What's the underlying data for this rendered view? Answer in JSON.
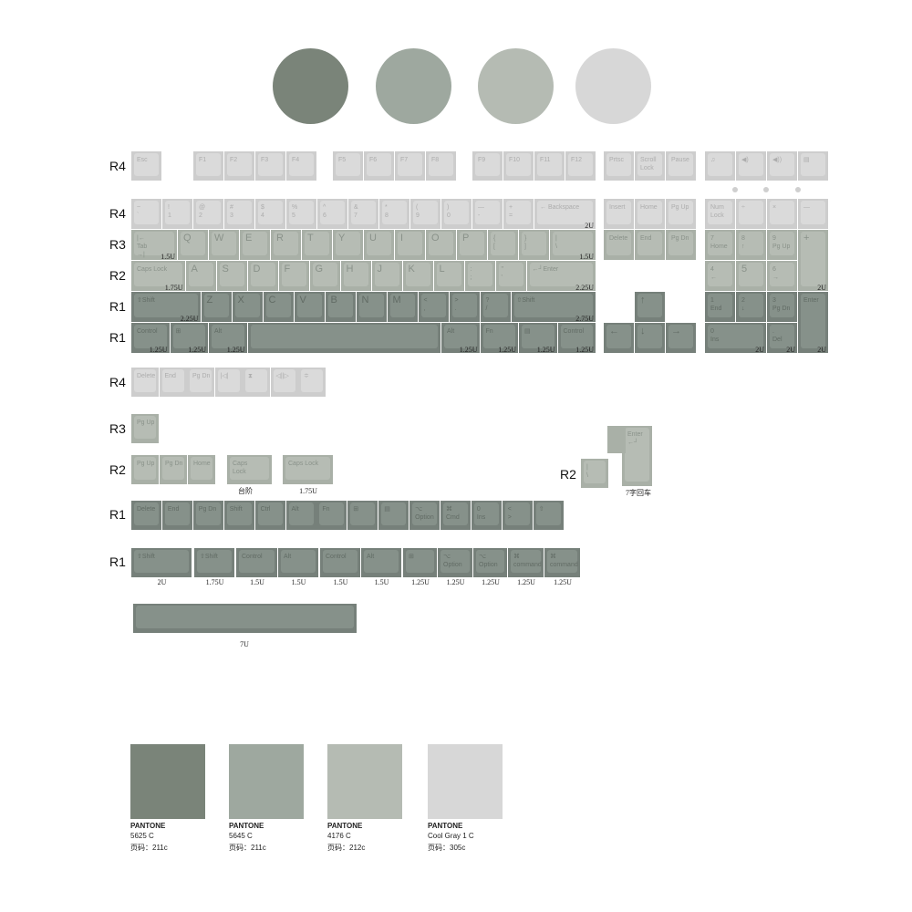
{
  "colors": {
    "5625C": "#7a8479",
    "5645C": "#9ea89f",
    "4176C": "#b5bbb3",
    "CoolGray1C": "#d7d7d7"
  },
  "row_labels": {
    "frow": "R4",
    "numrow": "R4",
    "qrow": "R3",
    "arow": "R2",
    "zrow": "R1",
    "bottom": "R1",
    "ex1": "R4",
    "ex2": "R3",
    "ex3": "R2",
    "iso": "R2",
    "ex4": "R1",
    "ex5": "R1"
  },
  "main": {
    "frow": [
      {
        "label": "Esc"
      },
      {
        "label": "F1"
      },
      {
        "label": "F2"
      },
      {
        "label": "F3"
      },
      {
        "label": "F4"
      },
      {
        "label": "F5"
      },
      {
        "label": "F6"
      },
      {
        "label": "F7"
      },
      {
        "label": "F8"
      },
      {
        "label": "F9"
      },
      {
        "label": "F10"
      },
      {
        "label": "F11"
      },
      {
        "label": "F12"
      },
      {
        "label": "Prtsc"
      },
      {
        "label": "Scroll\nLock"
      },
      {
        "label": "Pause"
      },
      {
        "label": "♫"
      },
      {
        "label": "◀)"
      },
      {
        "label": "◀))"
      },
      {
        "label": "▤"
      }
    ],
    "numrow": [
      {
        "label": "~\n`"
      },
      {
        "label": "!\n1"
      },
      {
        "label": "@\n2"
      },
      {
        "label": "#\n3"
      },
      {
        "label": "$\n4"
      },
      {
        "label": "%\n5"
      },
      {
        "label": "^\n6"
      },
      {
        "label": "&\n7"
      },
      {
        "label": "*\n8"
      },
      {
        "label": "(\n9"
      },
      {
        "label": ")\n0"
      },
      {
        "label": "—\n-"
      },
      {
        "label": "+\n="
      },
      {
        "label": "← Backspace",
        "size": "2U"
      },
      {
        "label": "Insert"
      },
      {
        "label": "Home"
      },
      {
        "label": "Pg Up"
      },
      {
        "label": "Num\nLock"
      },
      {
        "label": "÷"
      },
      {
        "label": "×"
      },
      {
        "label": "—"
      }
    ],
    "qrow": [
      {
        "label": "|←\nTab\n→|",
        "size": "1.5U"
      },
      {
        "label": "Q"
      },
      {
        "label": "W"
      },
      {
        "label": "E"
      },
      {
        "label": "R"
      },
      {
        "label": "T"
      },
      {
        "label": "Y"
      },
      {
        "label": "U"
      },
      {
        "label": "I"
      },
      {
        "label": "O"
      },
      {
        "label": "P"
      },
      {
        "label": "{\n["
      },
      {
        "label": "}\n]"
      },
      {
        "label": "|\n\\",
        "size": "1.5U"
      },
      {
        "label": "Delete"
      },
      {
        "label": "End"
      },
      {
        "label": "Pg Dn"
      },
      {
        "label": "7\nHome"
      },
      {
        "label": "8\n↑"
      },
      {
        "label": "9\nPg Up"
      },
      {
        "label": "+",
        "size": "2U"
      }
    ],
    "arow": [
      {
        "label": "Caps Lock",
        "size": "1.75U"
      },
      {
        "label": "A"
      },
      {
        "label": "S"
      },
      {
        "label": "D"
      },
      {
        "label": "F"
      },
      {
        "label": "G"
      },
      {
        "label": "H"
      },
      {
        "label": "J"
      },
      {
        "label": "K"
      },
      {
        "label": "L"
      },
      {
        "label": ":\n;"
      },
      {
        "label": "\"\n'"
      },
      {
        "label": "←┘Enter",
        "size": "2.25U"
      },
      {
        "label": "4\n←"
      },
      {
        "label": "5"
      },
      {
        "label": "6\n→"
      }
    ],
    "zrow": [
      {
        "label": "⇧Shift",
        "size": "2.25U"
      },
      {
        "label": "Z"
      },
      {
        "label": "X"
      },
      {
        "label": "C"
      },
      {
        "label": "V"
      },
      {
        "label": "B"
      },
      {
        "label": "N"
      },
      {
        "label": "M"
      },
      {
        "label": "<\n,"
      },
      {
        "label": ">\n."
      },
      {
        "label": "?\n/"
      },
      {
        "label": "⇧Shift",
        "size": "2.75U"
      },
      {
        "label": "↑"
      },
      {
        "label": "1\nEnd"
      },
      {
        "label": "2\n↓"
      },
      {
        "label": "3\nPg Dn"
      },
      {
        "label": "Enter",
        "size": "2U"
      }
    ],
    "bottom": [
      {
        "label": "Control",
        "size": "1.25U"
      },
      {
        "label": "⊞",
        "size": "1.25U"
      },
      {
        "label": "Alt",
        "size": "1.25U"
      },
      {
        "label": ""
      },
      {
        "label": "Alt",
        "size": "1.25U"
      },
      {
        "label": "Fn",
        "size": "1.25U"
      },
      {
        "label": "▤",
        "size": "1.25U"
      },
      {
        "label": "Control",
        "size": "1.25U"
      },
      {
        "label": "←"
      },
      {
        "label": "↓"
      },
      {
        "label": "→"
      },
      {
        "label": "0\nIns",
        "size": "2U"
      },
      {
        "label": ".\nDel",
        "size": "2U"
      }
    ]
  },
  "extras": {
    "ex1": [
      {
        "label": "Delete"
      },
      {
        "label": "End"
      },
      {
        "label": "Pg Dn"
      },
      {
        "label": "|◁|"
      },
      {
        "label": "⧗"
      },
      {
        "label": "◁||▷"
      },
      {
        "label": "≑"
      }
    ],
    "ex2": [
      {
        "label": "Pg Up"
      }
    ],
    "ex3": [
      {
        "label": "Pg Up"
      },
      {
        "label": "Pg Dn"
      },
      {
        "label": "Home"
      },
      {
        "label": "Caps\nLock"
      },
      {
        "label": "Caps Lock"
      }
    ],
    "ex3_sizes": [
      "台阶",
      "1.75U"
    ],
    "iso": [
      {
        "label": "|\n\\"
      },
      {
        "label": "Enter\n←┘"
      }
    ],
    "iso_size": "7字回车",
    "ex4": [
      {
        "label": "Delete"
      },
      {
        "label": "End"
      },
      {
        "label": "Pg Dn"
      },
      {
        "label": "Shift"
      },
      {
        "label": "Ctrl"
      },
      {
        "label": "Alt"
      },
      {
        "label": "Fn"
      },
      {
        "label": "⊞"
      },
      {
        "label": "▤"
      },
      {
        "label": "⌥\nOption"
      },
      {
        "label": "⌘\nCmd"
      },
      {
        "label": "0\nIns"
      },
      {
        "label": "<\n>"
      },
      {
        "label": "⇧"
      }
    ],
    "ex5": [
      {
        "label": "⇧Shift",
        "size": "2U"
      },
      {
        "label": "⇧Shift",
        "size": "1.75U"
      },
      {
        "label": "Control",
        "size": "1.5U"
      },
      {
        "label": "Alt",
        "size": "1.5U"
      },
      {
        "label": "Control",
        "size": "1.5U"
      },
      {
        "label": "Alt",
        "size": "1.5U"
      },
      {
        "label": "⊞",
        "size": "1.25U"
      },
      {
        "label": "⌥\nOption",
        "size": "1.25U"
      },
      {
        "label": "⌥\nOption",
        "size": "1.25U"
      },
      {
        "label": "⌘\ncommand",
        "size": "1.25U"
      },
      {
        "label": "⌘\ncommand",
        "size": "1.25U"
      }
    ],
    "space": {
      "label": "",
      "size": "7U"
    }
  },
  "swatches": [
    {
      "brand": "PANTONE",
      "code": "5625 C",
      "page": "页码：211c"
    },
    {
      "brand": "PANTONE",
      "code": "5645 C",
      "page": "页码：211c"
    },
    {
      "brand": "PANTONE",
      "code": "4176 C",
      "page": "页码：212c"
    },
    {
      "brand": "PANTONE",
      "code": "Cool Gray 1 C",
      "page": "页码：305c"
    }
  ]
}
